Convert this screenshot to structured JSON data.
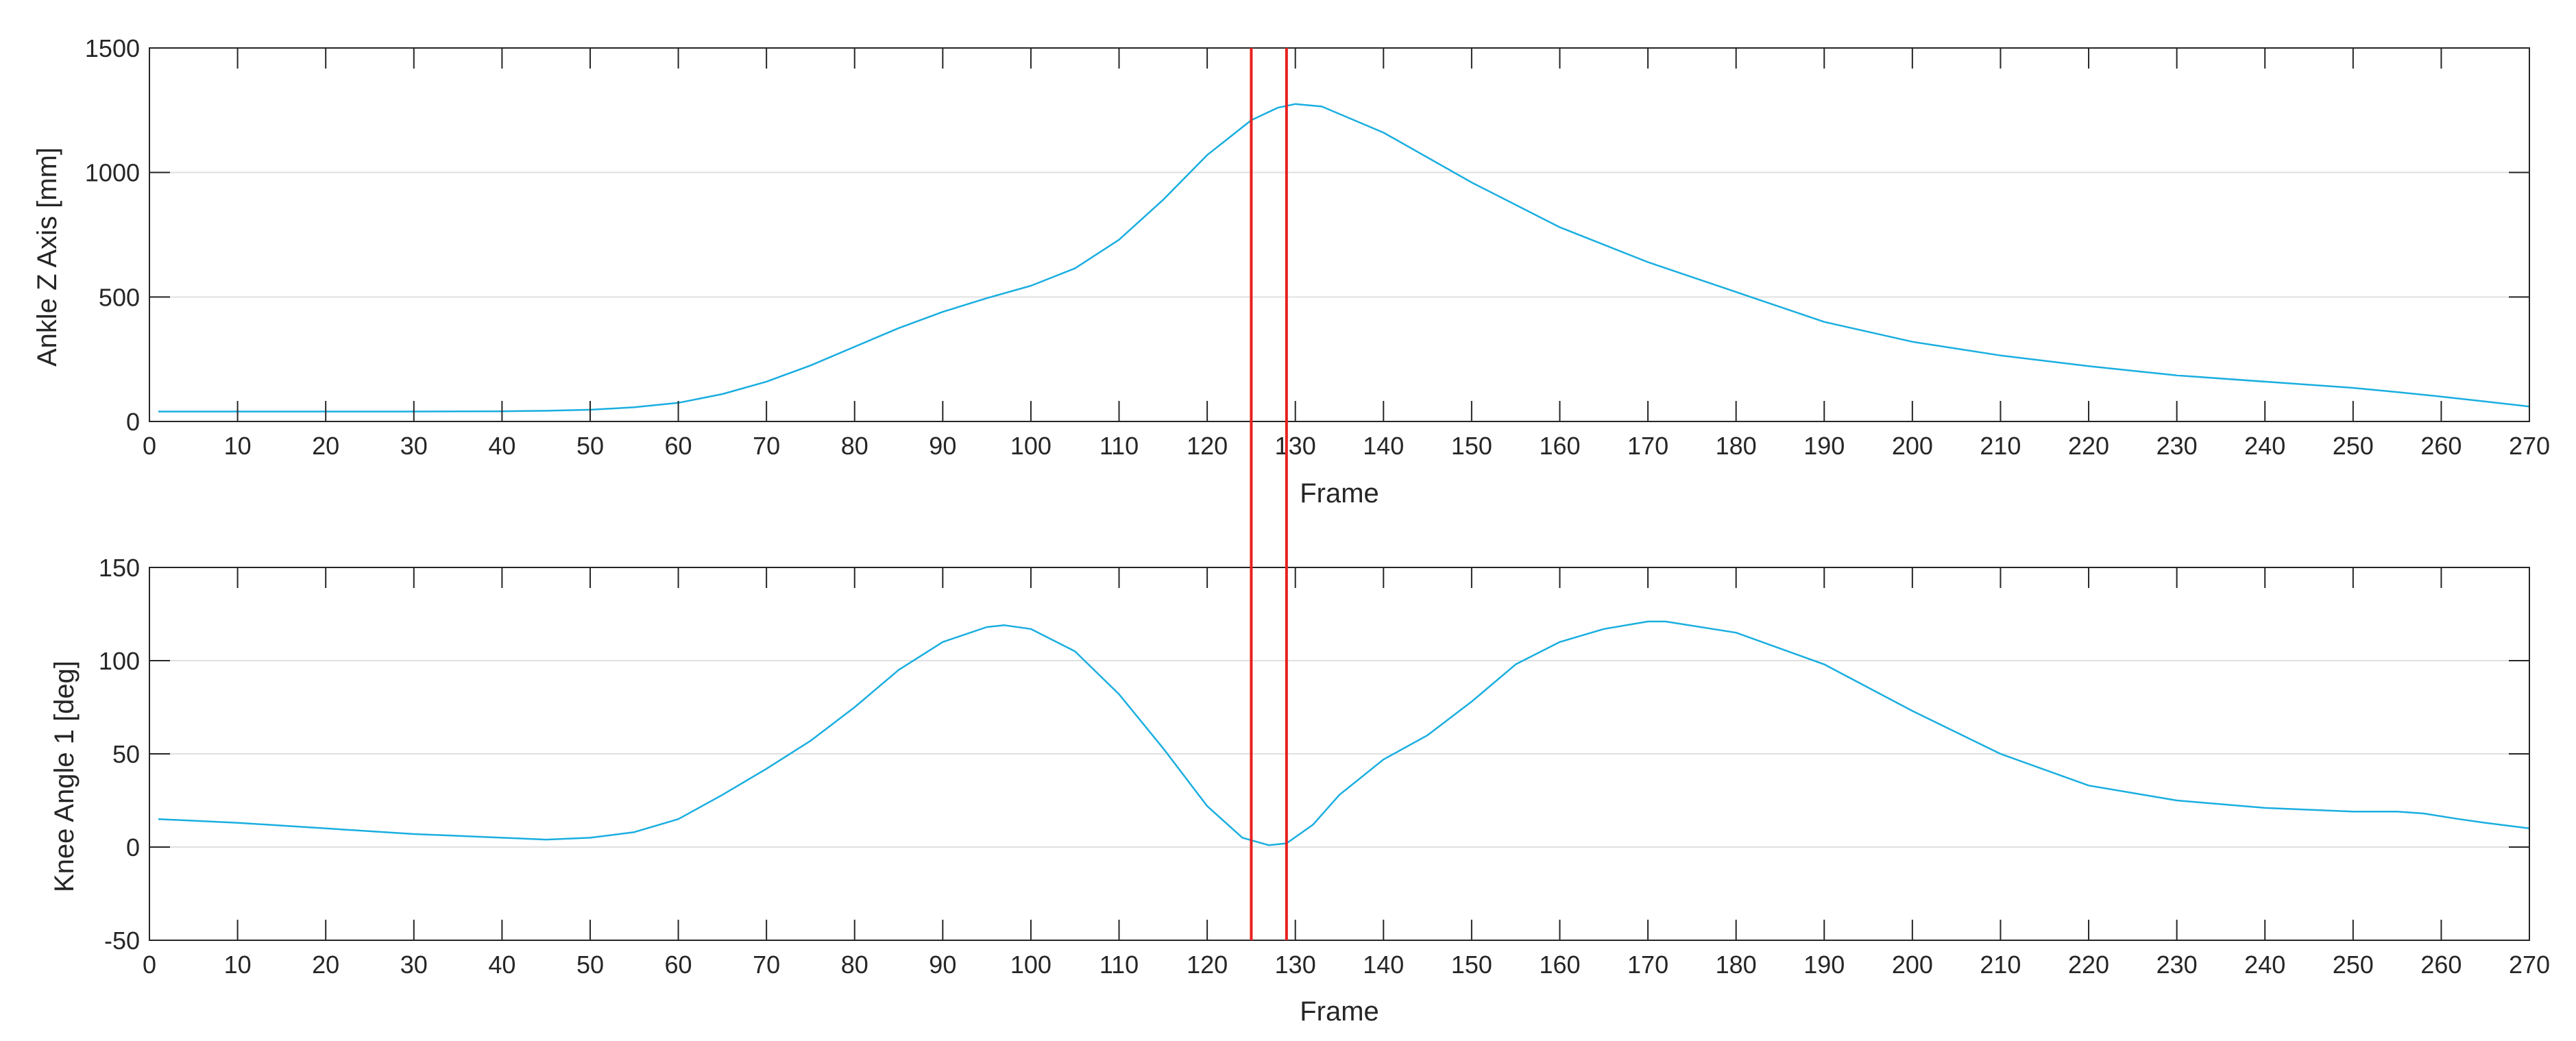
{
  "colors": {
    "series": "#1AAEE0",
    "marker": "#E8201E",
    "axis": "#262626",
    "grid": "#E0E0E0"
  },
  "marker_lines": {
    "x": [
      125,
      129
    ]
  },
  "chart_data": [
    {
      "type": "line",
      "name": "top",
      "xlabel": "Frame",
      "ylabel": "Ankle Z Axis [mm]",
      "xlim": [
        0,
        270
      ],
      "ylim": [
        0,
        1500
      ],
      "xticks": [
        "0",
        "10",
        "20",
        "30",
        "40",
        "50",
        "60",
        "70",
        "80",
        "90",
        "100",
        "110",
        "120",
        "130",
        "140",
        "150",
        "160",
        "170",
        "180",
        "190",
        "200",
        "210",
        "220",
        "230",
        "240",
        "250",
        "260",
        "270"
      ],
      "yticks": [
        "0",
        "500",
        "1000",
        "1500"
      ],
      "grid": false,
      "series": [
        {
          "x": [
            1,
            10,
            20,
            30,
            40,
            45,
            50,
            55,
            60,
            65,
            70,
            75,
            80,
            85,
            90,
            95,
            100,
            105,
            110,
            115,
            120,
            125,
            128,
            130,
            133,
            140,
            150,
            160,
            170,
            180,
            190,
            200,
            210,
            220,
            230,
            240,
            250,
            255,
            260,
            265,
            270
          ],
          "values": [
            40,
            40,
            40,
            40,
            41,
            43,
            47,
            57,
            75,
            110,
            160,
            225,
            300,
            375,
            440,
            495,
            545,
            615,
            730,
            890,
            1070,
            1210,
            1260,
            1275,
            1265,
            1160,
            960,
            780,
            640,
            520,
            400,
            320,
            265,
            222,
            185,
            160,
            135,
            118,
            100,
            80,
            60
          ]
        }
      ]
    },
    {
      "type": "line",
      "name": "bottom",
      "xlabel": "Frame",
      "ylabel": "Knee Angle 1 [deg]",
      "xlim": [
        0,
        270
      ],
      "ylim": [
        -50,
        150
      ],
      "xticks": [
        "0",
        "10",
        "20",
        "30",
        "40",
        "50",
        "60",
        "70",
        "80",
        "90",
        "100",
        "110",
        "120",
        "130",
        "140",
        "150",
        "160",
        "170",
        "180",
        "190",
        "200",
        "210",
        "220",
        "230",
        "240",
        "250",
        "260",
        "270"
      ],
      "yticks": [
        "-50",
        "0",
        "50",
        "100",
        "150"
      ],
      "grid": false,
      "series": [
        {
          "x": [
            1,
            10,
            20,
            30,
            40,
            45,
            50,
            55,
            60,
            65,
            70,
            75,
            80,
            85,
            90,
            95,
            97,
            100,
            105,
            110,
            115,
            120,
            124,
            127,
            129,
            132,
            135,
            140,
            145,
            150,
            155,
            160,
            165,
            170,
            172,
            180,
            190,
            200,
            210,
            220,
            230,
            240,
            250,
            255,
            258,
            262,
            265,
            270
          ],
          "values": [
            15,
            13,
            10,
            7,
            5,
            4,
            5,
            8,
            15,
            28,
            42,
            57,
            75,
            95,
            110,
            118,
            119,
            117,
            105,
            82,
            53,
            22,
            5,
            1,
            2,
            12,
            28,
            47,
            60,
            78,
            98,
            110,
            117,
            121,
            121,
            115,
            98,
            73,
            50,
            33,
            25,
            21,
            19,
            19,
            18,
            15,
            13,
            10
          ]
        }
      ]
    }
  ]
}
